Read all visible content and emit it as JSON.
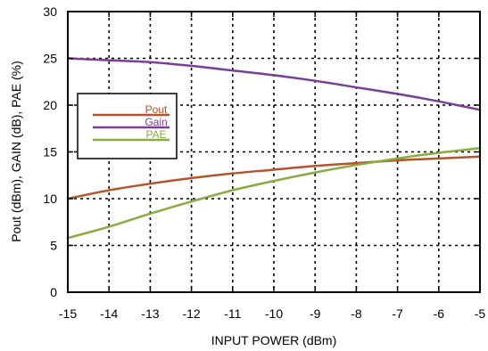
{
  "chart_data": {
    "type": "line",
    "title": "",
    "xlabel": "INPUT POWER (dBm)",
    "ylabel": "Pout (dBm), GAIN (dB), PAE (%)",
    "xlim": [
      -15,
      -5
    ],
    "ylim": [
      0,
      30
    ],
    "x_ticks": [
      "-15",
      "-14",
      "-13",
      "-12",
      "-11",
      "-10",
      "-9",
      "-8",
      "-7",
      "-6",
      "-5"
    ],
    "y_ticks": [
      "0",
      "5",
      "10",
      "15",
      "20",
      "25",
      "30"
    ],
    "grid": true,
    "legend_position": "left",
    "x": [
      -15,
      -14,
      -13,
      -12,
      -11,
      -10,
      -9,
      -8,
      -7,
      -6,
      -5
    ],
    "series": [
      {
        "name": "Pout",
        "color": "#b5532a",
        "values": [
          10.0,
          10.9,
          11.6,
          12.2,
          12.7,
          13.1,
          13.5,
          13.8,
          14.1,
          14.3,
          14.5
        ]
      },
      {
        "name": "Gain",
        "color": "#7a3e96",
        "values": [
          25.0,
          24.8,
          24.6,
          24.2,
          23.7,
          23.2,
          22.6,
          21.9,
          21.2,
          20.4,
          19.5
        ]
      },
      {
        "name": "PAE",
        "color": "#86ad3e",
        "values": [
          5.8,
          7.0,
          8.4,
          9.7,
          10.9,
          11.9,
          12.8,
          13.6,
          14.3,
          14.9,
          15.4
        ]
      }
    ]
  }
}
